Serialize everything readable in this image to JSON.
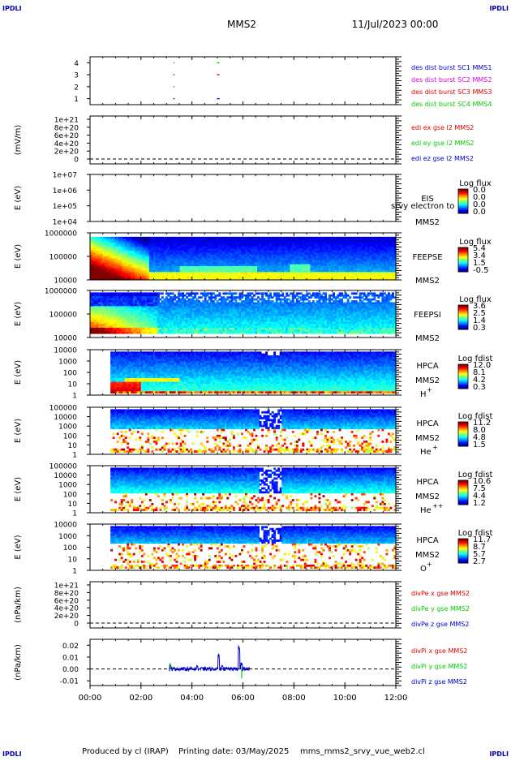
{
  "header": {
    "corner_tl": "IPDLI",
    "corner_tr": "IPDLI",
    "corner_bl": "IPDLI",
    "corner_br": "IPDLI",
    "title": "MMS2",
    "date": "11/Jul/2023 00:00"
  },
  "footer": {
    "produced_by": "Produced by cl (IRAP)",
    "printing_date": "Printing date: 03/May/2025",
    "script_name": "mms_mms2_srvy_vue_web2.cl"
  },
  "colors": {
    "red": "#dd0000",
    "green": "#00cc00",
    "blue": "#0000cc",
    "magenta": "#dd00dd",
    "axis": "#000000"
  },
  "chart_data": [
    {
      "type": "scatter",
      "title": "des dist burst",
      "ytick_labels": [
        "1",
        "2",
        "3",
        "4"
      ],
      "ylim": [
        0.5,
        4.5
      ],
      "xlim": [
        0,
        12
      ],
      "series": [
        {
          "name": "des dist burst SC1 MMS1",
          "color": "#0000cc"
        },
        {
          "name": "des dist burst SC2 MMS2",
          "color": "#dd00dd"
        },
        {
          "name": "des dist burst SC3 MMS3",
          "color": "#dd0000"
        },
        {
          "name": "des dist burst SC4 MMS4",
          "color": "#00cc00"
        }
      ],
      "intervals": [
        {
          "start": 3.27,
          "end": 3.3,
          "levels": [
            1,
            2,
            3,
            4
          ]
        },
        {
          "start": 4.98,
          "end": 5.08,
          "levels": [
            1,
            3,
            4
          ]
        }
      ]
    },
    {
      "type": "line",
      "ylabel": "(mV/m)",
      "ytick_labels": [
        "0",
        "2e+20",
        "4e+20",
        "6e+20",
        "8e+20",
        "1e+21"
      ],
      "series": [
        {
          "name": "edi ex gse l2 MMS2",
          "color": "#dd0000"
        },
        {
          "name": "edi ey gse l2 MMS2",
          "color": "#00cc00"
        },
        {
          "name": "edi ez gse l2 MMS2",
          "color": "#0000cc"
        }
      ],
      "zero_line": true
    },
    {
      "type": "heatmap",
      "ylabel": "E (eV)",
      "ytick_labels": [
        "1e+04",
        "1e+05",
        "1e+06",
        "1e+07"
      ],
      "instrument": "EIS",
      "instrument_extra": "srvy electron to",
      "spacecraft": "MMS2",
      "colorbar_title": "Log flux",
      "colorbar_ticks": [
        "0.0",
        "0.0",
        "0.0",
        "0.0"
      ],
      "pattern": "empty"
    },
    {
      "type": "heatmap",
      "ylabel": "E (eV)",
      "ytick_labels": [
        "10000",
        "100000",
        "1000000"
      ],
      "instrument": "FEEPSE",
      "spacecraft": "MMS2",
      "colorbar_title": "Log flux",
      "colorbar_ticks": [
        "5.4",
        "3.4",
        "1.5",
        "-0.5"
      ],
      "pattern": "feepse"
    },
    {
      "type": "heatmap",
      "ylabel": "E (eV)",
      "ytick_labels": [
        "10000",
        "100000",
        "1000000"
      ],
      "instrument": "FEEPSI",
      "spacecraft": "MMS2",
      "colorbar_title": "Log flux",
      "colorbar_ticks": [
        "3.6",
        "2.5",
        "1.4",
        "0.3"
      ],
      "pattern": "feepsi"
    },
    {
      "type": "heatmap",
      "ylabel": "E (eV)",
      "ytick_labels": [
        "1",
        "10",
        "100",
        "1000",
        "10000"
      ],
      "instrument": "HPCA",
      "spacecraft": "MMS2",
      "species": "H",
      "species_sup": "+",
      "colorbar_title": "Log fdist",
      "colorbar_ticks": [
        "12.0",
        "8.1",
        "4.2",
        "0.3"
      ],
      "pattern": "hplus"
    },
    {
      "type": "heatmap",
      "ylabel": "E (eV)",
      "ytick_labels": [
        "1",
        "10",
        "100",
        "1000",
        "10000",
        "100000"
      ],
      "instrument": "HPCA",
      "spacecraft": "MMS2",
      "species": "He",
      "species_sup": "+",
      "colorbar_title": "Log fdist",
      "colorbar_ticks": [
        "11.2",
        "8.0",
        "4.8",
        "1.5"
      ],
      "pattern": "heplus"
    },
    {
      "type": "heatmap",
      "ylabel": "E (eV)",
      "ytick_labels": [
        "1",
        "10",
        "100",
        "1000",
        "10000",
        "100000"
      ],
      "instrument": "HPCA",
      "spacecraft": "MMS2",
      "species": "He",
      "species_sup": "++",
      "colorbar_title": "Log fdist",
      "colorbar_ticks": [
        "10.6",
        "7.5",
        "4.4",
        "1.2"
      ],
      "pattern": "heplusplus"
    },
    {
      "type": "heatmap",
      "ylabel": "E (eV)",
      "ytick_labels": [
        "1",
        "10",
        "100",
        "1000",
        "10000"
      ],
      "instrument": "HPCA",
      "spacecraft": "MMS2",
      "species": "O",
      "species_sup": "+",
      "colorbar_title": "Log fdist",
      "colorbar_ticks": [
        "11.7",
        "8.7",
        "5.7",
        "2.7"
      ],
      "pattern": "oplus"
    },
    {
      "type": "line",
      "ylabel": "(nPa/km)",
      "ytick_labels": [
        "0",
        "2e+20",
        "4e+20",
        "6e+20",
        "8e+20",
        "1e+21"
      ],
      "series": [
        {
          "name": "divPe x gse MMS2",
          "color": "#dd0000"
        },
        {
          "name": "divPe y gse MMS2",
          "color": "#00cc00"
        },
        {
          "name": "divPe z gse MMS2",
          "color": "#0000cc"
        }
      ],
      "zero_line": true
    },
    {
      "type": "line",
      "ylabel": "(nPa/km)",
      "ytick_labels": [
        "-0.01",
        "0.00",
        "0.01",
        "0.02"
      ],
      "ytick_values": [
        -0.01,
        0.0,
        0.01,
        0.02
      ],
      "ylim": [
        -0.014,
        0.025
      ],
      "xlim": [
        0,
        12
      ],
      "xtick_labels": [
        "00:00",
        "02:00",
        "04:00",
        "06:00",
        "08:00",
        "10:00",
        "12:00"
      ],
      "series": [
        {
          "name": "divPi x gse MMS2",
          "color": "#dd0000"
        },
        {
          "name": "divPi y gse MMS2",
          "color": "#00cc00"
        },
        {
          "name": "divPi z gse MMS2",
          "color": "#0000cc"
        }
      ],
      "zero_line": true,
      "data_interval": [
        3.1,
        6.25
      ],
      "spikes": [
        {
          "x": 3.15,
          "y": 0.004
        },
        {
          "x": 4.2,
          "y": 0.003
        },
        {
          "x": 5.05,
          "y": 0.014
        },
        {
          "x": 5.2,
          "y": 0.003
        },
        {
          "x": 5.85,
          "y": 0.02
        },
        {
          "x": 5.95,
          "y": 0.006
        }
      ]
    }
  ]
}
